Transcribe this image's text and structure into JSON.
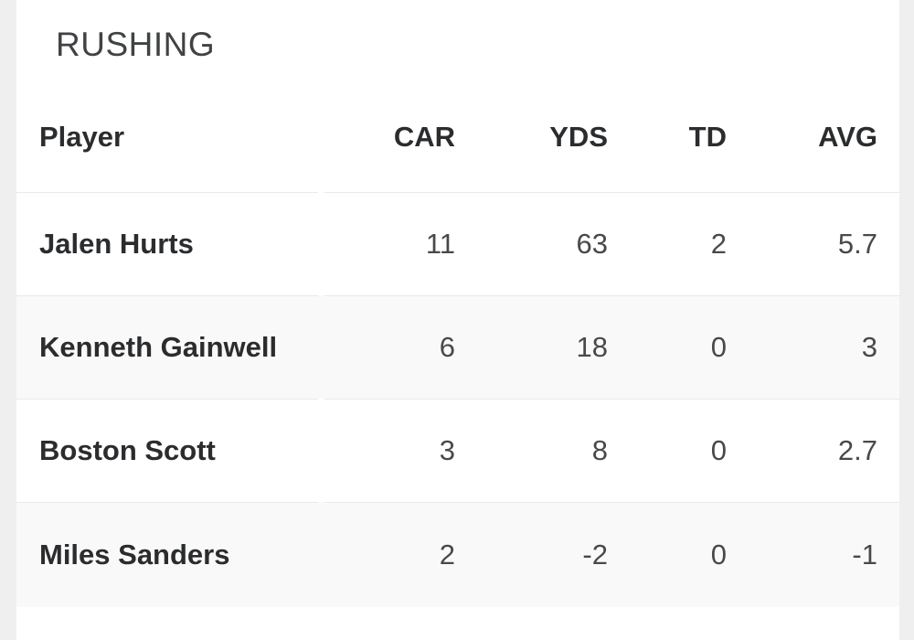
{
  "section": {
    "title": "RUSHING"
  },
  "table": {
    "headers": {
      "player": "Player",
      "car": "CAR",
      "yds": "YDS",
      "td": "TD",
      "avg": "AVG"
    },
    "rows": [
      {
        "player": "Jalen Hurts",
        "car": "11",
        "yds": "63",
        "td": "2",
        "avg": "5.7"
      },
      {
        "player": "Kenneth Gainwell",
        "car": "6",
        "yds": "18",
        "td": "0",
        "avg": "3"
      },
      {
        "player": "Boston Scott",
        "car": "3",
        "yds": "8",
        "td": "0",
        "avg": "2.7"
      },
      {
        "player": "Miles Sanders",
        "car": "2",
        "yds": "-2",
        "td": "0",
        "avg": "-1"
      }
    ]
  },
  "chart_data": {
    "type": "table",
    "title": "RUSHING",
    "columns": [
      "Player",
      "CAR",
      "YDS",
      "TD",
      "AVG"
    ],
    "rows": [
      [
        "Jalen Hurts",
        11,
        63,
        2,
        5.7
      ],
      [
        "Kenneth Gainwell",
        6,
        18,
        0,
        3
      ],
      [
        "Boston Scott",
        3,
        8,
        0,
        2.7
      ],
      [
        "Miles Sanders",
        2,
        -2,
        0,
        -1
      ]
    ]
  },
  "colors": {
    "page_bg": "#efefef",
    "card_bg": "#ffffff",
    "row_alt_bg": "#f9f9f9",
    "divider": "#e9e9e9",
    "title_text": "#404244",
    "heading_text": "#2b2c2e",
    "number_text": "#48494b"
  }
}
